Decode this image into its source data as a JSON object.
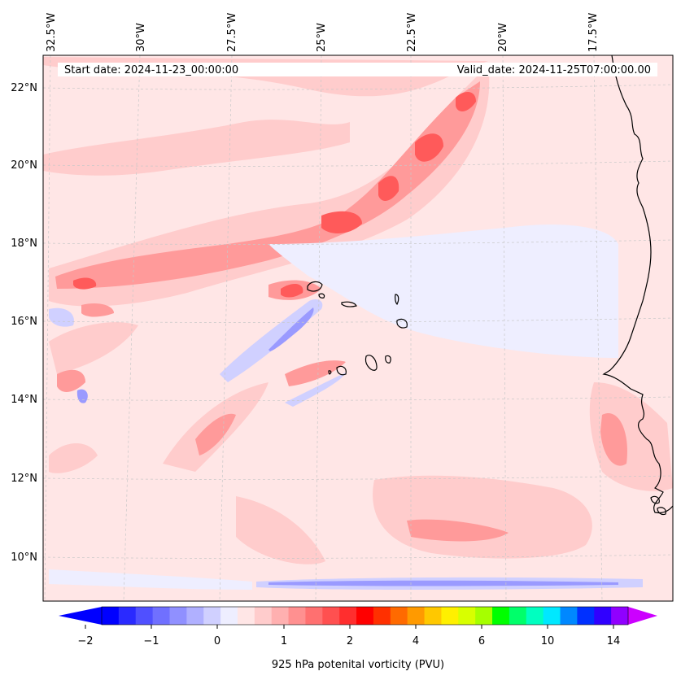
{
  "header": {
    "start_date": "Start date: 2024-11-23_00:00:00",
    "valid_date": "Valid_date: 2024-11-25T07:00:00.00"
  },
  "longitude_labels": [
    "32.5°W",
    "30°W",
    "27.5°W",
    "25°W",
    "22.5°W",
    "20°W",
    "17.5°W"
  ],
  "latitude_labels": [
    "22°N",
    "20°N",
    "18°N",
    "16°N",
    "14°N",
    "12°N",
    "10°N"
  ],
  "colorbar": {
    "title": "925 hPa potenital vorticity (PVU)",
    "tick_labels": [
      "−2",
      "−1",
      "0",
      "1",
      "2",
      "4",
      "6",
      "10",
      "14"
    ],
    "colors": [
      "#0000ff",
      "#2a2aff",
      "#5050ff",
      "#7070ff",
      "#9090ff",
      "#b0b0ff",
      "#d0d0ff",
      "#eeeeff",
      "#ffe6e6",
      "#ffcccc",
      "#ffb0b0",
      "#ff9090",
      "#ff7070",
      "#ff5050",
      "#ff2e2e",
      "#ff0000",
      "#ff3000",
      "#ff6a00",
      "#ff9a00",
      "#ffc800",
      "#fff000",
      "#d8ff00",
      "#a6ff00",
      "#00ff00",
      "#00ff6a",
      "#00ffc0",
      "#00e8ff",
      "#0088ff",
      "#0030ff",
      "#3000ff",
      "#9000ff"
    ],
    "extend_min_color": "#0000ff",
    "extend_max_color": "#cc00ff"
  },
  "colors": {
    "background_field": "#ffe6e6",
    "coastline": "#000000",
    "gridline": "#c8c8c8"
  }
}
